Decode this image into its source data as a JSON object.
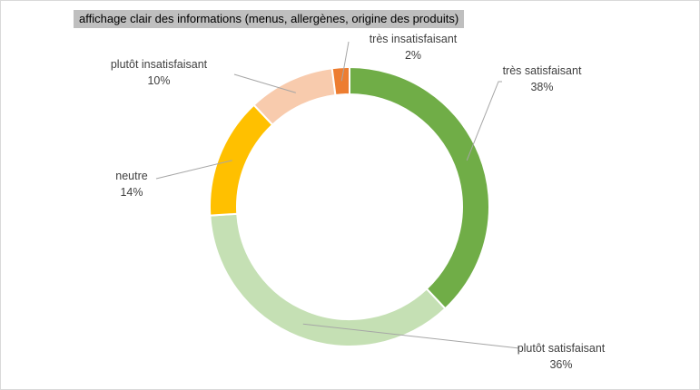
{
  "chart_data": {
    "type": "pie",
    "variant": "donut",
    "title": "affichage clair des informations (menus, allergènes, origine des produits)",
    "legend": "none",
    "slices": [
      {
        "label": "très satisfaisant",
        "value": 38,
        "value_label": "38%",
        "color": "#70ad47"
      },
      {
        "label": "plutôt satisfaisant",
        "value": 36,
        "value_label": "36%",
        "color": "#c5e0b4"
      },
      {
        "label": "neutre",
        "value": 14,
        "value_label": "14%",
        "color": "#ffc000"
      },
      {
        "label": "plutôt insatisfaisant",
        "value": 10,
        "value_label": "10%",
        "color": "#f8cbad"
      },
      {
        "label": "très insatisfaisant",
        "value": 2,
        "value_label": "2%",
        "color": "#ed7d31"
      }
    ]
  }
}
